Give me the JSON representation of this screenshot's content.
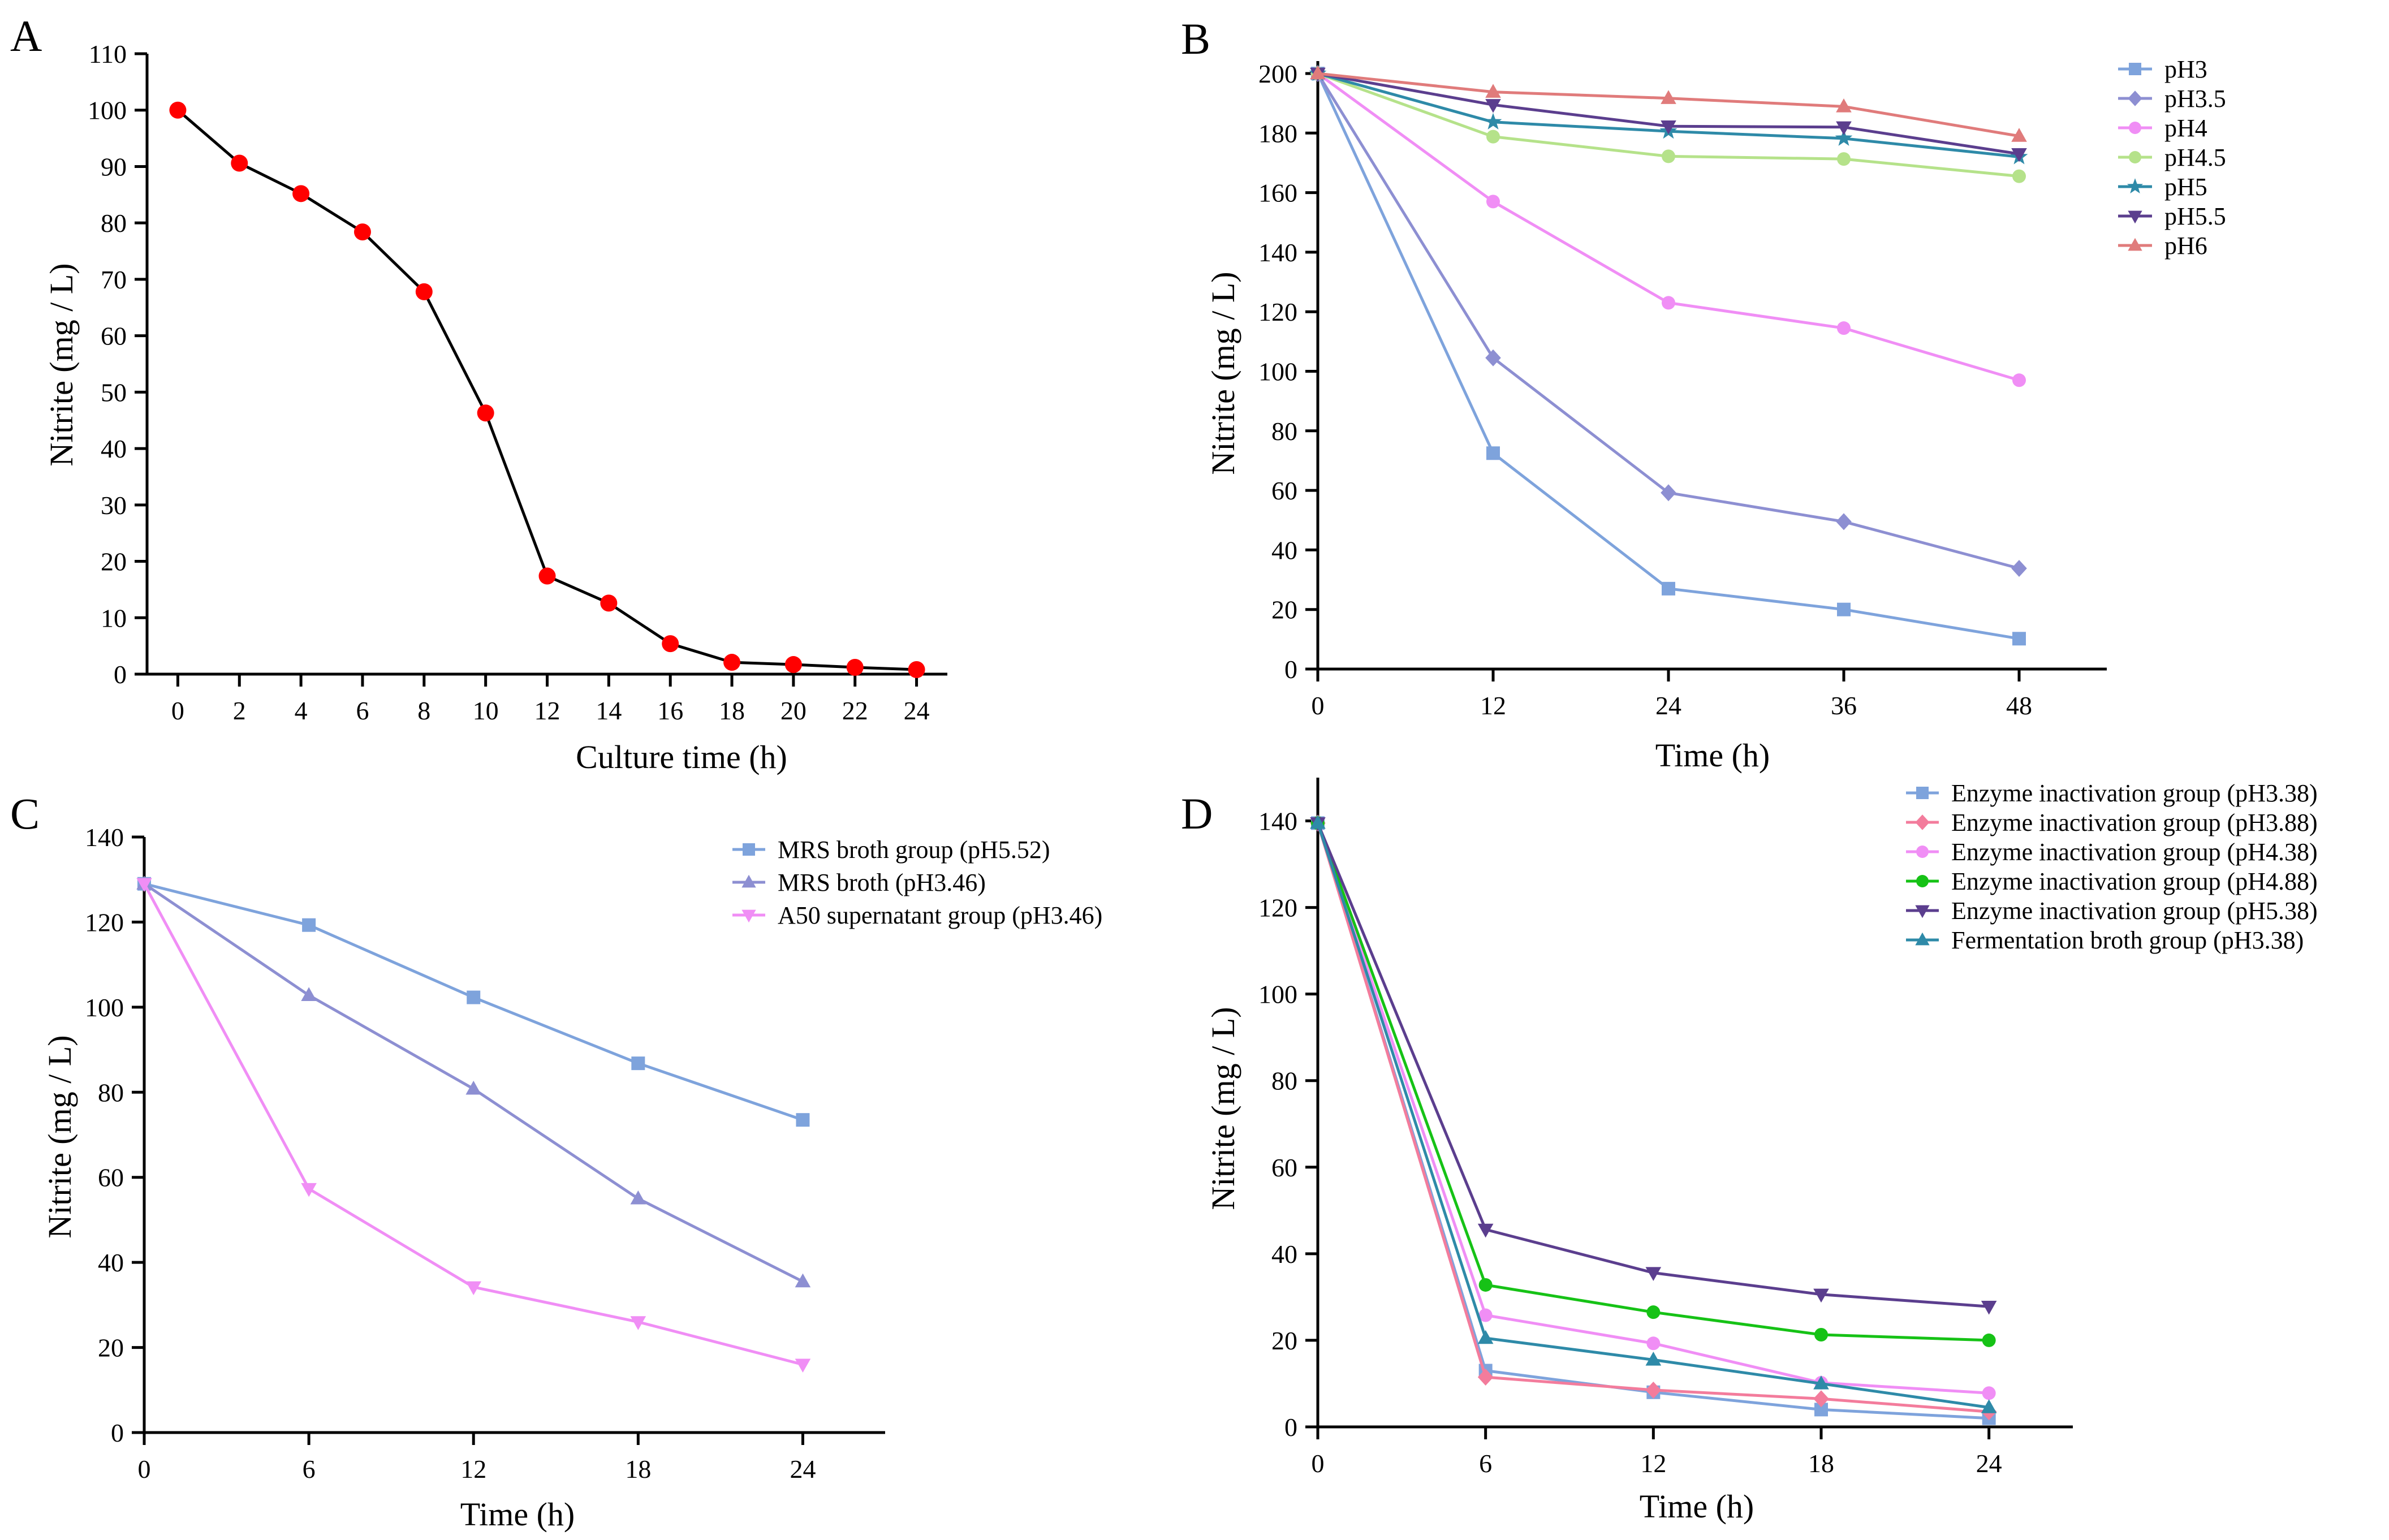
{
  "chart_data": [
    {
      "panel_label": "A",
      "type": "line",
      "xlabel": "Culture time (h)",
      "ylabel": "Nitrite (mg / L)",
      "xlim": [
        -1,
        25
      ],
      "ylim": [
        0,
        110
      ],
      "xticks": [
        "0",
        "2",
        "4",
        "6",
        "8",
        "10",
        "12",
        "14",
        "16",
        "18",
        "20",
        "22",
        "24"
      ],
      "yticks": [
        "0",
        "10",
        "20",
        "30",
        "40",
        "50",
        "60",
        "70",
        "80",
        "90",
        "100",
        "110"
      ],
      "legend": false,
      "series": [
        {
          "name": "Nitrite",
          "color": "#000000",
          "marker_color": "#ff0000",
          "marker": "circle",
          "x": [
            0,
            2,
            4,
            6,
            8,
            10,
            12,
            14,
            16,
            18,
            20,
            22,
            24
          ],
          "values": [
            100,
            90.6,
            85.2,
            78.4,
            67.8,
            46.3,
            17.4,
            12.6,
            5.4,
            2.1,
            1.7,
            1.2,
            0.8
          ]
        }
      ]
    },
    {
      "panel_label": "B",
      "type": "line",
      "xlabel": "Time (h)",
      "ylabel": "Nitrite (mg / L)",
      "xlim": [
        0,
        54
      ],
      "ylim": [
        0,
        200
      ],
      "xticks": [
        "0",
        "12",
        "24",
        "36",
        "48"
      ],
      "yticks": [
        "0",
        "20",
        "40",
        "60",
        "80",
        "100",
        "120",
        "140",
        "160",
        "180",
        "200"
      ],
      "legend": true,
      "legend_position": "top-right",
      "series": [
        {
          "name": "pH3",
          "color": "#7ea3dc",
          "marker": "square",
          "x": [
            0,
            12,
            24,
            36,
            48
          ],
          "values": [
            200,
            72.5,
            27,
            20,
            10.2
          ]
        },
        {
          "name": "pH3.5",
          "color": "#8d8fd2",
          "marker": "diamond",
          "x": [
            0,
            12,
            24,
            36,
            48
          ],
          "values": [
            200,
            104.5,
            59.2,
            49.5,
            33.8
          ]
        },
        {
          "name": "pH4",
          "color": "#f08ef5",
          "marker": "circle",
          "x": [
            0,
            12,
            24,
            36,
            48
          ],
          "values": [
            200,
            157,
            123,
            114.5,
            97
          ]
        },
        {
          "name": "pH4.5",
          "color": "#b5e28a",
          "marker": "circle",
          "x": [
            0,
            12,
            24,
            36,
            48
          ],
          "values": [
            200,
            178.8,
            172.2,
            171.3,
            165.5
          ]
        },
        {
          "name": "pH5",
          "color": "#2e8aa8",
          "marker": "star",
          "x": [
            0,
            12,
            24,
            36,
            48
          ],
          "values": [
            200,
            183.7,
            180.6,
            178.2,
            172
          ]
        },
        {
          "name": "pH5.5",
          "color": "#5b3e8e",
          "marker": "triangle-down",
          "x": [
            0,
            12,
            24,
            36,
            48
          ],
          "values": [
            200,
            189.5,
            182.3,
            182,
            173
          ]
        },
        {
          "name": "pH6",
          "color": "#e07b7b",
          "marker": "triangle-up",
          "x": [
            0,
            12,
            24,
            36,
            48
          ],
          "values": [
            200,
            193.8,
            191.7,
            188.9,
            179
          ]
        }
      ]
    },
    {
      "panel_label": "C",
      "type": "line",
      "xlabel": "Time (h)",
      "ylabel": "Nitrite (mg / L)",
      "xlim": [
        0,
        27
      ],
      "ylim": [
        0,
        140
      ],
      "xticks": [
        "0",
        "6",
        "12",
        "18",
        "24"
      ],
      "yticks": [
        "0",
        "20",
        "40",
        "60",
        "80",
        "100",
        "120",
        "140"
      ],
      "legend": true,
      "legend_position": "top-right",
      "series": [
        {
          "name": "MRS broth group (pH5.52)",
          "color": "#7ea3dc",
          "marker": "square",
          "x": [
            0,
            6,
            12,
            18,
            24
          ],
          "values": [
            129,
            119.3,
            102.3,
            86.8,
            73.5
          ]
        },
        {
          "name": "MRS broth (pH3.46)",
          "color": "#8d8fd2",
          "marker": "triangle-up",
          "x": [
            0,
            6,
            12,
            18,
            24
          ],
          "values": [
            129,
            102.8,
            80.8,
            55,
            35.5
          ]
        },
        {
          "name": "A50 supernatant group (pH3.46)",
          "color": "#f08ef5",
          "marker": "triangle-down",
          "x": [
            0,
            6,
            12,
            18,
            24
          ],
          "values": [
            129,
            57.3,
            34.2,
            26,
            16
          ]
        }
      ]
    },
    {
      "panel_label": "D",
      "type": "line",
      "xlabel": "Time (h)",
      "ylabel": "Nitrite (mg / L)",
      "xlim": [
        0,
        27
      ],
      "ylim": [
        0,
        150
      ],
      "xticks": [
        "0",
        "6",
        "12",
        "18",
        "24"
      ],
      "yticks": [
        "0",
        "20",
        "40",
        "60",
        "80",
        "100",
        "120",
        "140"
      ],
      "legend": true,
      "legend_position": "top-right",
      "series": [
        {
          "name": "Enzyme inactivation group (pH3.38)",
          "color": "#7ea3dc",
          "marker": "square",
          "x": [
            0,
            6,
            12,
            18,
            24
          ],
          "values": [
            139.5,
            13,
            8,
            4,
            2
          ]
        },
        {
          "name": "Enzyme inactivation group (pH3.88)",
          "color": "#f37c9c",
          "marker": "diamond",
          "x": [
            0,
            6,
            12,
            18,
            24
          ],
          "values": [
            139.5,
            11.5,
            8.5,
            6.5,
            3.5
          ]
        },
        {
          "name": "Enzyme inactivation group (pH4.38)",
          "color": "#f08ef5",
          "marker": "circle",
          "x": [
            0,
            6,
            12,
            18,
            24
          ],
          "values": [
            139.5,
            25.8,
            19.3,
            10.2,
            7.8
          ]
        },
        {
          "name": "Enzyme inactivation group (pH4.88)",
          "color": "#16c216",
          "marker": "circle",
          "x": [
            0,
            6,
            12,
            18,
            24
          ],
          "values": [
            139.5,
            32.8,
            26.5,
            21.3,
            20
          ]
        },
        {
          "name": "Enzyme inactivation group (pH5.38)",
          "color": "#5b3e8e",
          "marker": "triangle-down",
          "x": [
            0,
            6,
            12,
            18,
            24
          ],
          "values": [
            139.5,
            45.6,
            35.6,
            30.6,
            27.8
          ]
        },
        {
          "name": "Fermentation broth group (pH3.38)",
          "color": "#2e8aa8",
          "marker": "triangle-up",
          "x": [
            0,
            6,
            12,
            18,
            24
          ],
          "values": [
            139.5,
            20.5,
            15.5,
            10,
            4.5
          ]
        }
      ]
    }
  ]
}
